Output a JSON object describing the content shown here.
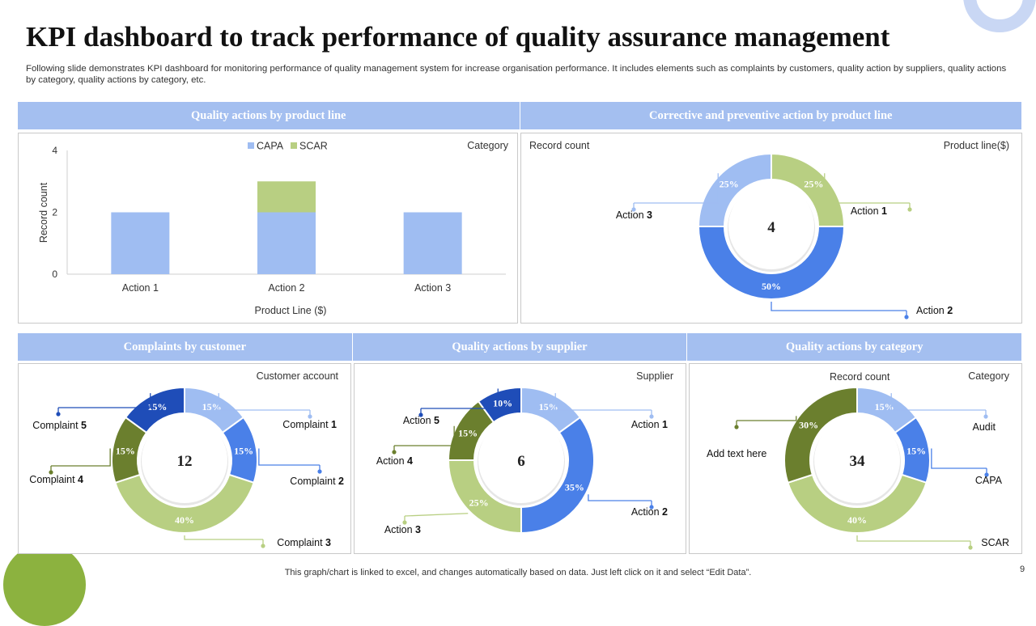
{
  "title": "KPI dashboard to track performance of quality assurance management",
  "subtitle": "Following slide demonstrates KPI dashboard for monitoring performance of quality management system for increase organisation performance. It includes elements such as complaints by customers, quality action by suppliers, quality actions by category, quality actions by category, etc.",
  "footer": "This graph/chart is linked to excel, and changes automatically based on data. Just left click on it and select “Edit Data”.",
  "page_number": "9",
  "sections": {
    "top_left": "Quality  actions by product  line",
    "top_right": "Corrective  and  preventive  action  by  product  line",
    "bottom_left": "Complaints  by  customer",
    "bottom_mid": "Quality  actions  by  supplier",
    "bottom_right": "Quality  actions  by  category"
  },
  "colors": {
    "light_blue": "#9fbdf2",
    "blue": "#4a80e8",
    "dark_blue": "#1f4db8",
    "light_green": "#b8cf82",
    "dark_green": "#6b7f2e",
    "band": "#a4bff0"
  },
  "chart_data": [
    {
      "type": "bar",
      "stacked": true,
      "corner_label": "Category",
      "categories": [
        "Action 1",
        "Action 2",
        "Action 3"
      ],
      "series": [
        {
          "name": "CAPA",
          "values": [
            2,
            2,
            2
          ],
          "color": "#9fbdf2"
        },
        {
          "name": "SCAR",
          "values": [
            0,
            1,
            0
          ],
          "color": "#b8cf82"
        }
      ],
      "xlabel": "Product Line ($)",
      "ylabel": "Record count",
      "ylim": [
        0,
        4
      ],
      "yticks": [
        0,
        2,
        4
      ],
      "legend": "top"
    },
    {
      "type": "pie",
      "donut": true,
      "top_left_label": "Record count",
      "corner_label": "Product line($)",
      "center_value": "4",
      "slices": [
        {
          "name": "Action 1",
          "value": 25,
          "label": "25%",
          "color": "#b8cf82",
          "callout": [
            "Action ",
            "1"
          ],
          "side": "right"
        },
        {
          "name": "Action 2",
          "value": 50,
          "label": "50%",
          "color": "#4a80e8",
          "callout": [
            "Action ",
            "2"
          ],
          "side": "right"
        },
        {
          "name": "Action 3",
          "value": 25,
          "label": "25%",
          "color": "#9fbdf2",
          "callout": [
            "Action ",
            "3"
          ],
          "side": "left"
        }
      ]
    },
    {
      "type": "pie",
      "donut": true,
      "corner_label": "Customer account",
      "center_value": "12",
      "slices": [
        {
          "name": "Complaint 1",
          "value": 15,
          "label": "15%",
          "color": "#9fbdf2",
          "callout": [
            "Complaint  ",
            "1"
          ],
          "side": "right"
        },
        {
          "name": "Complaint 2",
          "value": 15,
          "label": "15%",
          "color": "#4a80e8",
          "callout": [
            "Complaint  ",
            "2"
          ],
          "side": "right"
        },
        {
          "name": "Complaint 3",
          "value": 40,
          "label": "40%",
          "color": "#b8cf82",
          "callout": [
            "Complaint  ",
            "3"
          ],
          "side": "right"
        },
        {
          "name": "Complaint 4",
          "value": 15,
          "label": "15%",
          "color": "#6b7f2e",
          "callout": [
            "Complaint  ",
            "4"
          ],
          "side": "left"
        },
        {
          "name": "Complaint 5",
          "value": 15,
          "label": "15%",
          "color": "#1f4db8",
          "callout": [
            "Complaint  ",
            "5"
          ],
          "side": "left"
        }
      ]
    },
    {
      "type": "pie",
      "donut": true,
      "corner_label": "Supplier",
      "center_value": "6",
      "slices": [
        {
          "name": "Action 1",
          "value": 15,
          "label": "15%",
          "color": "#9fbdf2",
          "callout": [
            "Action ",
            "1"
          ],
          "side": "right"
        },
        {
          "name": "Action 2",
          "value": 35,
          "label": "35%",
          "color": "#4a80e8",
          "callout": [
            "Action ",
            "2"
          ],
          "side": "right"
        },
        {
          "name": "Action 3",
          "value": 25,
          "label": "25%",
          "color": "#b8cf82",
          "callout": [
            "Action ",
            "3"
          ],
          "side": "left"
        },
        {
          "name": "Action 4",
          "value": 15,
          "label": "15%",
          "color": "#6b7f2e",
          "callout": [
            "Action ",
            "4"
          ],
          "side": "left"
        },
        {
          "name": "Action 5",
          "value": 10,
          "label": "10%",
          "color": "#1f4db8",
          "callout": [
            "Action ",
            "5"
          ],
          "side": "left"
        }
      ]
    },
    {
      "type": "pie",
      "donut": true,
      "top_label": "Record count",
      "corner_label": "Category",
      "center_value": "34",
      "slices": [
        {
          "name": "Audit",
          "value": 15,
          "label": "15%",
          "color": "#9fbdf2",
          "callout": [
            "Audit",
            ""
          ],
          "side": "right"
        },
        {
          "name": "CAPA",
          "value": 15,
          "label": "15%",
          "color": "#4a80e8",
          "callout": [
            "CAPA",
            ""
          ],
          "side": "right"
        },
        {
          "name": "SCAR",
          "value": 40,
          "label": "40%",
          "color": "#b8cf82",
          "callout": [
            "SCAR",
            ""
          ],
          "side": "right"
        },
        {
          "name": "Add text here",
          "value": 30,
          "label": "30%",
          "color": "#6b7f2e",
          "callout": [
            "Add text here",
            ""
          ],
          "side": "left"
        }
      ]
    }
  ]
}
